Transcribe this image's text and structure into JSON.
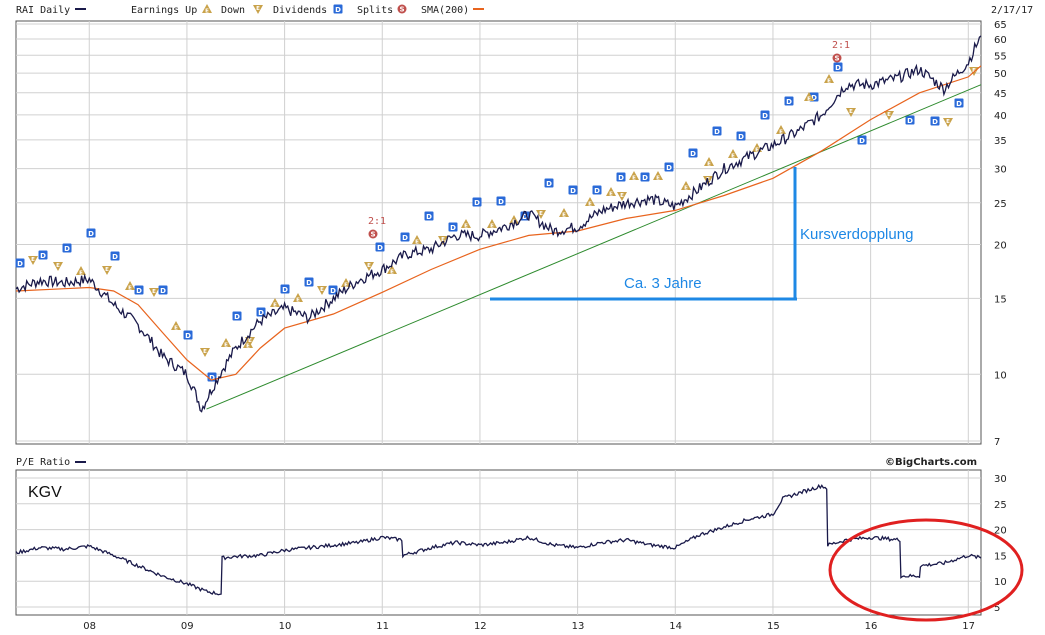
{
  "header": {
    "symbol_label": "RAI Daily",
    "earnings_up_label": "Earnings Up",
    "down_label": "Down",
    "dividends_label": "Dividends",
    "splits_label": "Splits",
    "sma_label": "SMA(200)",
    "date_label": "2/17/17",
    "pe_label": "P/E Ratio",
    "credit": "©BigCharts.com"
  },
  "colors": {
    "price": "#1a1a4a",
    "sma": "#e8641e",
    "trend": "#2e8b2e",
    "annotation": "#1e88e5",
    "ellipse": "#e02020",
    "dividend": "#2a6ad8",
    "earnings": "#c9a24a",
    "split": "#c0504d",
    "grid": "#d0d0d0"
  },
  "annotations": {
    "doubling": "Kursverdopplung",
    "years": "Ca. 3 Jahre",
    "kgv": "KGV",
    "split_1": "2:1",
    "split_2": "2:1",
    "dividend_glyph": "D",
    "earnings_glyph": "E",
    "split_glyph": "S"
  },
  "chart_data": [
    {
      "type": "line",
      "name": "price-panel",
      "x_ticks": [
        "08",
        "09",
        "10",
        "11",
        "12",
        "13",
        "14",
        "15",
        "16",
        "17"
      ],
      "x_range": [
        2007.25,
        2017.13
      ],
      "y_scale": "log",
      "y_ticks": [
        7,
        10,
        15,
        20,
        25,
        30,
        35,
        40,
        45,
        50,
        55,
        60,
        65
      ],
      "ylim": [
        7,
        65
      ],
      "grid": true,
      "series": [
        {
          "name": "RAI Daily",
          "x": [
            2007.25,
            2007.5,
            2007.75,
            2008.0,
            2008.25,
            2008.5,
            2008.75,
            2009.0,
            2009.15,
            2009.25,
            2009.5,
            2009.75,
            2010.0,
            2010.25,
            2010.5,
            2010.75,
            2011.0,
            2011.25,
            2011.5,
            2011.75,
            2012.0,
            2012.25,
            2012.5,
            2012.75,
            2013.0,
            2013.25,
            2013.5,
            2013.75,
            2014.0,
            2014.25,
            2014.5,
            2014.75,
            2015.0,
            2015.25,
            2015.5,
            2015.75,
            2016.0,
            2016.25,
            2016.5,
            2016.75,
            2017.0,
            2017.13
          ],
          "values": [
            15.8,
            16.5,
            16.3,
            16.6,
            14.5,
            13.0,
            11.0,
            10.0,
            8.3,
            9.2,
            11.5,
            13.3,
            14.2,
            13.5,
            15.0,
            16.5,
            17.5,
            19.0,
            19.5,
            21.0,
            21.0,
            22.0,
            23.5,
            21.5,
            22.0,
            24.0,
            25.0,
            25.5,
            24.5,
            27.0,
            30.0,
            32.0,
            34.0,
            36.5,
            40.0,
            47.0,
            47.0,
            48.5,
            51.0,
            46.0,
            53.0,
            61.0
          ]
        },
        {
          "name": "SMA(200)",
          "x": [
            2007.25,
            2007.75,
            2008.0,
            2008.25,
            2008.5,
            2008.75,
            2009.0,
            2009.25,
            2009.5,
            2009.75,
            2010.0,
            2010.5,
            2011.0,
            2011.5,
            2012.0,
            2012.5,
            2013.0,
            2013.5,
            2014.0,
            2014.5,
            2015.0,
            2015.5,
            2016.0,
            2016.5,
            2017.0,
            2017.13
          ],
          "values": [
            15.6,
            15.8,
            15.9,
            15.6,
            14.5,
            12.5,
            10.8,
            9.7,
            10.0,
            11.5,
            12.8,
            13.8,
            15.5,
            17.5,
            19.5,
            21.0,
            21.5,
            23.0,
            24.0,
            26.0,
            28.5,
            33.0,
            39.0,
            45.0,
            49.0,
            52.0
          ]
        },
        {
          "name": "trendline",
          "x": [
            2009.2,
            2017.13
          ],
          "values": [
            8.3,
            47.0
          ]
        }
      ]
    },
    {
      "type": "line",
      "name": "pe-panel",
      "x_ticks": [
        "08",
        "09",
        "10",
        "11",
        "12",
        "13",
        "14",
        "15",
        "16",
        "17"
      ],
      "x_range": [
        2007.25,
        2017.13
      ],
      "y_ticks": [
        5,
        10,
        15,
        20,
        25,
        30
      ],
      "ylim": [
        5,
        30
      ],
      "grid": true,
      "series": [
        {
          "name": "P/E Ratio",
          "x": [
            2007.25,
            2007.5,
            2007.75,
            2008.0,
            2008.25,
            2008.5,
            2008.75,
            2009.0,
            2009.2,
            2009.35,
            2009.36,
            2009.5,
            2009.75,
            2010.0,
            2010.25,
            2010.5,
            2010.75,
            2011.0,
            2011.2,
            2011.21,
            2011.5,
            2011.75,
            2012.0,
            2012.25,
            2012.5,
            2012.75,
            2013.0,
            2013.25,
            2013.5,
            2013.75,
            2014.0,
            2014.25,
            2014.5,
            2014.75,
            2015.0,
            2015.1,
            2015.25,
            2015.5,
            2015.55,
            2015.56,
            2015.75,
            2016.0,
            2016.3,
            2016.31,
            2016.5,
            2016.51,
            2016.75,
            2017.0,
            2017.13
          ],
          "values": [
            15.5,
            16.5,
            16.2,
            16.8,
            15.0,
            13.0,
            11.0,
            9.5,
            8.0,
            7.5,
            14.5,
            14.8,
            15.0,
            16.0,
            16.5,
            17.0,
            17.5,
            18.5,
            18.0,
            15.0,
            16.5,
            17.5,
            17.0,
            17.5,
            18.5,
            17.0,
            16.5,
            17.5,
            18.0,
            17.0,
            16.5,
            19.0,
            20.5,
            22.0,
            23.0,
            26.0,
            27.0,
            28.5,
            28.0,
            17.0,
            18.0,
            18.5,
            18.0,
            11.0,
            11.0,
            13.0,
            13.5,
            15.0,
            14.5
          ]
        }
      ]
    }
  ]
}
